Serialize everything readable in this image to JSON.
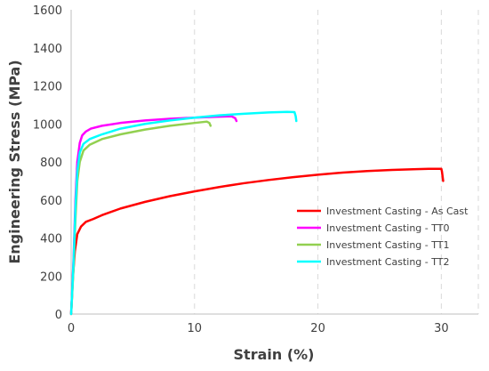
{
  "chart_data": {
    "type": "line",
    "title": "",
    "xlabel": "Strain (%)",
    "ylabel": "Engineering Stress (MPa)",
    "xlim": [
      0,
      33
    ],
    "ylim": [
      0,
      1600
    ],
    "xticks": [
      0,
      10,
      20,
      30
    ],
    "yticks": [
      0,
      200,
      400,
      600,
      800,
      1000,
      1200,
      1400,
      1600
    ],
    "grid": "dashed vertical gridlines",
    "legend_position": "lower-right",
    "series": [
      {
        "name": "Investment Casting - As Cast",
        "color": "#ff0000",
        "points": [
          [
            0,
            0
          ],
          [
            0.15,
            200
          ],
          [
            0.3,
            330
          ],
          [
            0.5,
            420
          ],
          [
            0.8,
            460
          ],
          [
            1.2,
            485
          ],
          [
            1.8,
            500
          ],
          [
            2.5,
            520
          ],
          [
            4,
            555
          ],
          [
            6,
            590
          ],
          [
            8,
            620
          ],
          [
            10,
            645
          ],
          [
            12,
            668
          ],
          [
            14,
            688
          ],
          [
            16,
            705
          ],
          [
            18,
            720
          ],
          [
            20,
            733
          ],
          [
            22,
            744
          ],
          [
            24,
            752
          ],
          [
            26,
            758
          ],
          [
            28,
            762
          ],
          [
            29,
            764
          ],
          [
            30,
            764
          ],
          [
            30.05,
            750
          ],
          [
            30.15,
            700
          ]
        ]
      },
      {
        "name": "Investment Casting - TT0",
        "color": "#ff00ff",
        "points": [
          [
            0,
            0
          ],
          [
            0.2,
            300
          ],
          [
            0.35,
            600
          ],
          [
            0.5,
            800
          ],
          [
            0.7,
            900
          ],
          [
            0.9,
            940
          ],
          [
            1.2,
            960
          ],
          [
            1.6,
            975
          ],
          [
            2.5,
            990
          ],
          [
            4,
            1005
          ],
          [
            6,
            1018
          ],
          [
            8,
            1027
          ],
          [
            10,
            1033
          ],
          [
            12,
            1038
          ],
          [
            13,
            1040
          ],
          [
            13.3,
            1030
          ],
          [
            13.4,
            1015
          ]
        ]
      },
      {
        "name": "Investment Casting - TT1",
        "color": "#92d050",
        "points": [
          [
            0,
            0
          ],
          [
            0.2,
            250
          ],
          [
            0.35,
            500
          ],
          [
            0.5,
            700
          ],
          [
            0.7,
            800
          ],
          [
            1,
            860
          ],
          [
            1.5,
            890
          ],
          [
            2.5,
            920
          ],
          [
            4,
            945
          ],
          [
            6,
            970
          ],
          [
            8,
            990
          ],
          [
            10,
            1005
          ],
          [
            11,
            1012
          ],
          [
            11.2,
            1005
          ],
          [
            11.3,
            990
          ]
        ]
      },
      {
        "name": "Investment Casting - TT2",
        "color": "#00ffff",
        "points": [
          [
            0,
            0
          ],
          [
            0.2,
            280
          ],
          [
            0.35,
            560
          ],
          [
            0.5,
            750
          ],
          [
            0.7,
            850
          ],
          [
            1,
            895
          ],
          [
            1.5,
            920
          ],
          [
            2.5,
            945
          ],
          [
            4,
            975
          ],
          [
            6,
            1000
          ],
          [
            8,
            1018
          ],
          [
            10,
            1033
          ],
          [
            12,
            1045
          ],
          [
            14,
            1053
          ],
          [
            16,
            1060
          ],
          [
            17.5,
            1063
          ],
          [
            18.1,
            1062
          ],
          [
            18.2,
            1040
          ],
          [
            18.25,
            1015
          ]
        ]
      }
    ]
  }
}
